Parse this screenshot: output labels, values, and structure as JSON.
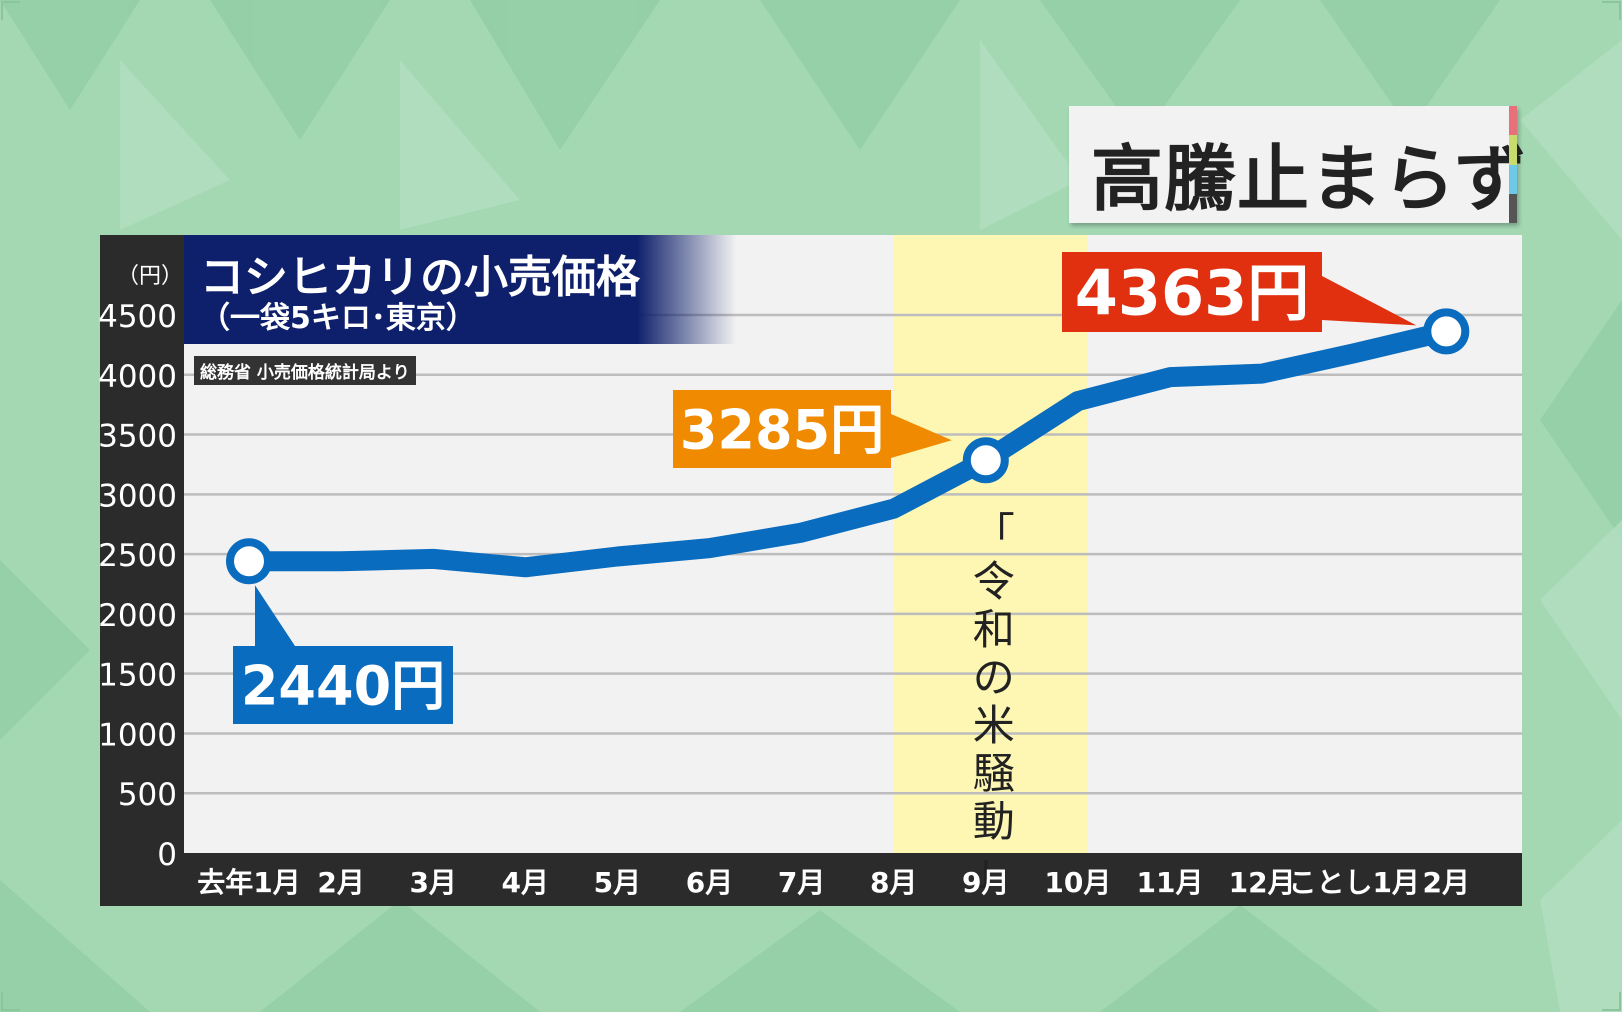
{
  "badge": {
    "text": "高騰止まらず",
    "stripe_colors": [
      "#e8707a",
      "#c8dc6e",
      "#6ec8e6",
      "#555555"
    ]
  },
  "title": {
    "main": "コシヒカリの小売価格",
    "sub": "（一袋5キロ･東京）"
  },
  "source": "総務省 小売価格統計局より",
  "highlight_label": "「令和の米騒動」",
  "colors": {
    "line": "#0a6cbf",
    "highlight": "#fff8a8",
    "plot_bg": "#f2f2f2",
    "frame": "#2b2b2b",
    "callout_first": "#0a6cbf",
    "callout_mid": "#f08a00",
    "callout_last": "#e03010"
  },
  "chart_data": {
    "type": "line",
    "unit_label": "（円）",
    "categories": [
      "去年1月",
      "2月",
      "3月",
      "4月",
      "5月",
      "6月",
      "7月",
      "8月",
      "9月",
      "10月",
      "11月",
      "12月",
      "ことし1月",
      "2月"
    ],
    "values": [
      2440,
      2440,
      2460,
      2390,
      2480,
      2550,
      2680,
      2880,
      3285,
      3780,
      3980,
      4010,
      4180,
      4363
    ],
    "yticks": [
      0,
      500,
      1000,
      1500,
      2000,
      2500,
      3000,
      3500,
      4000,
      4500
    ],
    "ylim": [
      0,
      4500
    ],
    "grid": true,
    "highlight_range": [
      "8月",
      "10月"
    ],
    "callouts": [
      {
        "index": 0,
        "label": "2440円"
      },
      {
        "index": 8,
        "label": "3285円"
      },
      {
        "index": 13,
        "label": "4363円"
      }
    ]
  }
}
